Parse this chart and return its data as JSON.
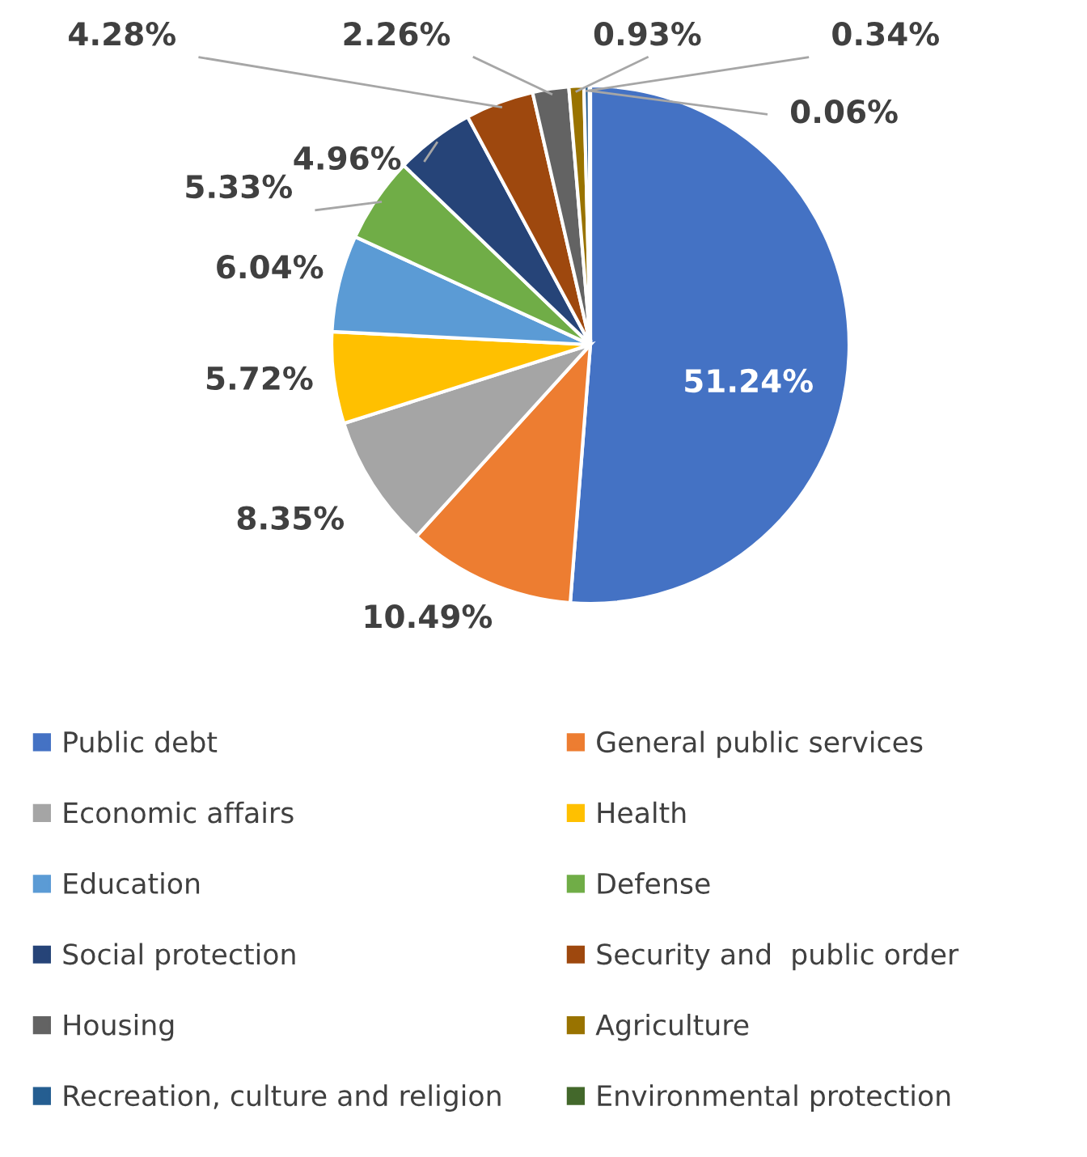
{
  "chart_data": {
    "type": "pie",
    "categories": [
      "Public debt",
      "General public services",
      "Economic affairs",
      "Health",
      "Education",
      "Defense",
      "Social protection",
      "Security and  public order",
      "Housing",
      "Agriculture",
      "Recreation, culture and religion",
      "Environmental protection"
    ],
    "values": [
      51.24,
      10.49,
      8.35,
      5.72,
      6.04,
      5.33,
      4.96,
      4.28,
      2.26,
      0.93,
      0.34,
      0.06
    ],
    "value_labels": [
      "51.24%",
      "10.49%",
      "8.35%",
      "5.72%",
      "6.04%",
      "5.33%",
      "4.96%",
      "4.28%",
      "2.26%",
      "0.93%",
      "0.34%",
      "0.06%"
    ],
    "colors": [
      "#4472c4",
      "#ed7d31",
      "#a5a5a5",
      "#ffc000",
      "#5b9bd5",
      "#70ad47",
      "#264478",
      "#9e480e",
      "#636363",
      "#997300",
      "#255e91",
      "#43682b"
    ],
    "legend": "bottom"
  }
}
